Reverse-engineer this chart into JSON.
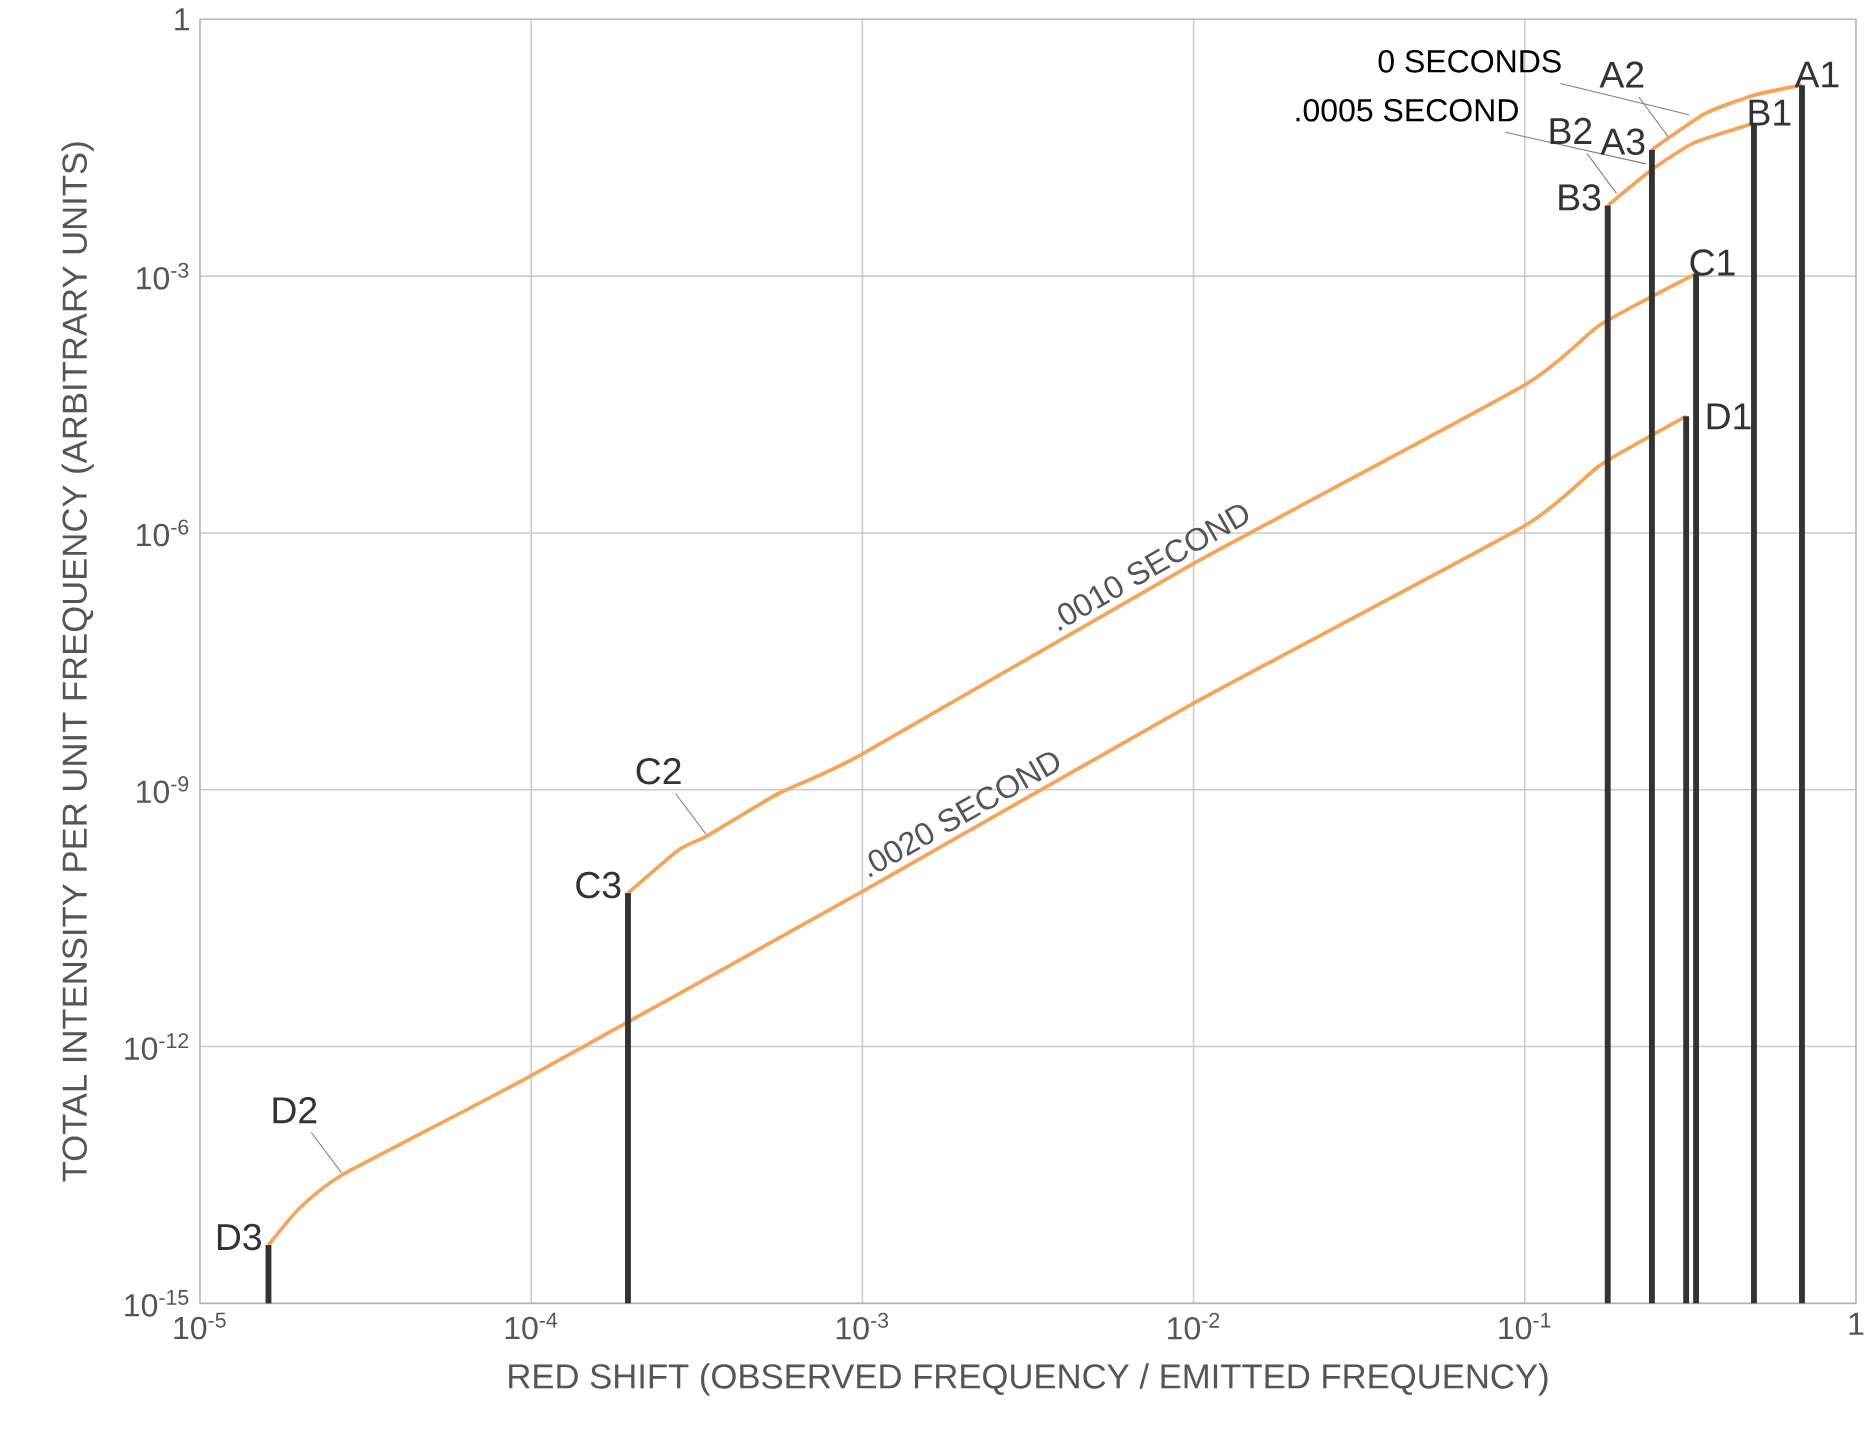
{
  "chart_data": {
    "type": "line",
    "xlabel": "RED SHIFT (OBSERVED FREQUENCY / EMITTED FREQUENCY)",
    "ylabel": "TOTAL INTENSITY PER UNIT FREQUENCY (ARBITRARY UNITS)",
    "log": "xy",
    "grid": true,
    "marker": "none",
    "line_style": "solid",
    "xlim": [
      1e-05,
      1
    ],
    "ylim": [
      1e-15,
      1
    ],
    "xticks": [
      {
        "value": 1e-05,
        "label": "10$^{-5}$"
      },
      {
        "value": 0.0001,
        "label": "10$^{-4}$"
      },
      {
        "value": 0.001,
        "label": "10$^{-3}$"
      },
      {
        "value": 0.01,
        "label": "10$^{-2}$"
      },
      {
        "value": 0.1,
        "label": "10$^{-1}$"
      },
      1
    ],
    "yticks": [
      {
        "value": 1e-15,
        "label": "10$^{-15}$"
      },
      {
        "value": 1e-12,
        "label": "10$^{-12}$"
      },
      {
        "value": 1e-09,
        "label": "10$^{-9}$"
      },
      {
        "value": 1e-06,
        "label": "10$^{-6}$"
      },
      {
        "value": 0.001,
        "label": "10$^{-3}$"
      },
      1
    ],
    "series": [
      {
        "name": "0 SECONDS",
        "color": "#f4a55a",
        "x": [
          0.242,
          0.352,
          0.492,
          0.687
        ],
        "values": [
          0.03,
          0.08,
          0.13,
          0.17
        ]
      },
      {
        "name": ".0005 SECOND",
        "color": "#f4a55a",
        "x": [
          0.178,
          0.244,
          0.324,
          0.492
        ],
        "values": [
          0.0067,
          0.018,
          0.036,
          0.061
        ]
      },
      {
        "name": ".0010 SECOND",
        "color": "#f4a55a",
        "x": [
          0.000196,
          0.00028,
          0.00034,
          0.00056,
          0.00098,
          0.0098,
          0.0995,
          0.169,
          0.329
        ],
        "values": [
          6.2e-11,
          2e-10,
          2.9e-10,
          9.1e-10,
          2.5e-09,
          4.2e-07,
          5.3e-05,
          0.00027,
          0.00107
        ]
      },
      {
        "name": ".0020 SECOND",
        "color": "#f4a55a",
        "x": [
          1.61e-05,
          2e-05,
          2.7e-05,
          9.6e-05,
          0.00098,
          0.0098,
          0.0995,
          0.169,
          0.307
        ],
        "values": [
          4.8e-15,
          1.3e-14,
          3.2e-14,
          4.2e-13,
          6.2e-11,
          9.8e-09,
          1.2e-06,
          6.2e-06,
          2.3e-05
        ]
      },
      {
        "type": "bar",
        "color": "#333333",
        "x": [
          1.61e-05,
          0.000196,
          0.178,
          0.242,
          0.307,
          0.329,
          0.492,
          0.687
        ],
        "values": [
          4.8e-15,
          6.2e-11,
          0.0067,
          0.03,
          2.3e-05,
          0.00107,
          0.061,
          0.17
        ]
      }
    ],
    "annotations": [
      {
        "text": "A1",
        "x": 0.687,
        "y": 0.17
      },
      {
        "text": "A2",
        "x": 0.274,
        "y": 0.04
      },
      {
        "text": "A3",
        "x": 0.242,
        "y": 0.03
      },
      {
        "text": "B1",
        "x": 0.492,
        "y": 0.061
      },
      {
        "text": "B2",
        "x": 0.191,
        "y": 0.0088
      },
      {
        "text": "B3",
        "x": 0.178,
        "y": 0.0067
      },
      {
        "text": "C1",
        "x": 0.329,
        "y": 0.00107
      },
      {
        "text": "C2",
        "x": 0.00034,
        "y": 2.9e-10
      },
      {
        "text": "C3",
        "x": 0.000196,
        "y": 6.2e-11
      },
      {
        "text": "D1",
        "x": 0.307,
        "y": 2.3e-05
      },
      {
        "text": "D2",
        "x": 2.7e-05,
        "y": 3.2e-14
      },
      {
        "text": "D3",
        "x": 1.61e-05,
        "y": 4.8e-15
      }
    ]
  }
}
